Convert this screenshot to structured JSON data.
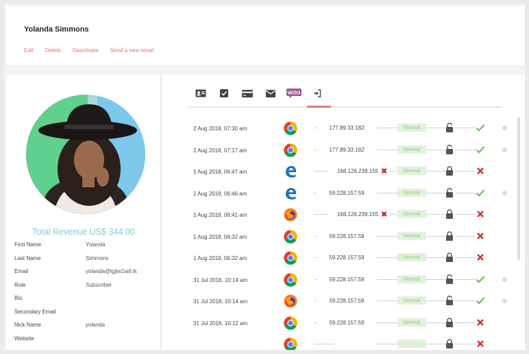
{
  "header": {
    "name": "Yolanda Simmons",
    "actions": {
      "edit": "Edit",
      "delete": "Delete",
      "deactivate": "Deactivate",
      "send_email": "Send a new email"
    }
  },
  "profile": {
    "revenue": "Total Revenue US$ 344.00",
    "fields": {
      "first_name": {
        "label": "First Name",
        "value": "Yolanda"
      },
      "last_name": {
        "label": "Last Name",
        "value": "Simmons"
      },
      "email": {
        "label": "Email",
        "value": "yolanda@lgjlw1iaif.tk"
      },
      "role": {
        "label": "Role",
        "value": "Subscriber"
      },
      "bio": {
        "label": "Bio",
        "value": ""
      },
      "secondary_email": {
        "label": "Secondary Email",
        "value": ""
      },
      "nick_name": {
        "label": "Nick Name",
        "value": "yolanda"
      },
      "website": {
        "label": "Website",
        "value": ""
      }
    }
  },
  "tabs": [
    {
      "icon": "contact-card-icon"
    },
    {
      "icon": "checkbox-icon"
    },
    {
      "icon": "credit-card-icon"
    },
    {
      "icon": "envelope-icon"
    },
    {
      "icon": "woo-icon",
      "label": "WOO"
    },
    {
      "icon": "sign-in-icon",
      "active": true
    }
  ],
  "colors": {
    "accent": "#e07777",
    "revenue": "#86c8cc",
    "status_bg": "#e2f1dc",
    "status_text": "#8fc58a",
    "success": "#6cbf5b",
    "error": "#d0312d"
  },
  "logins": [
    {
      "date": "2 Aug 2018, 07:30 am",
      "browser": "chrome",
      "ip": "177.89.33.182",
      "ip_flag": false,
      "status": "Normal",
      "lock": "open",
      "result": "success"
    },
    {
      "date": "2 Aug 2018, 07:17 am",
      "browser": "chrome",
      "ip": "177.89.33.182",
      "ip_flag": false,
      "status": "Normal",
      "lock": "open",
      "result": "success"
    },
    {
      "date": "1 Aug 2018, 06:47 am",
      "browser": "edge",
      "ip": "168.126.239.155",
      "ip_flag": true,
      "status": "Normal",
      "lock": "closed",
      "result": "fail"
    },
    {
      "date": "1 Aug 2018, 06:46 am",
      "browser": "edge",
      "ip": "59.228.157.59",
      "ip_flag": false,
      "status": "Normal",
      "lock": "open",
      "result": "success"
    },
    {
      "date": "1 Aug 2018, 06:41 am",
      "browser": "firefox",
      "ip": "168.126.239.155",
      "ip_flag": true,
      "status": "Normal",
      "lock": "closed",
      "result": "fail"
    },
    {
      "date": "1 Aug 2018, 06:32 am",
      "browser": "chrome",
      "ip": "59.228.157.59",
      "ip_flag": false,
      "status": "Normal",
      "lock": "closed",
      "result": "fail"
    },
    {
      "date": "1 Aug 2018, 06:32 am",
      "browser": "chrome",
      "ip": "59.228.157.59",
      "ip_flag": false,
      "status": "Normal",
      "lock": "closed",
      "result": "fail"
    },
    {
      "date": "31 Jul 2018, 10:14 am",
      "browser": "chrome",
      "ip": "59.228.157.59",
      "ip_flag": false,
      "status": "Normal",
      "lock": "open",
      "result": "success"
    },
    {
      "date": "31 Jul 2018, 10:14 am",
      "browser": "firefox",
      "ip": "59.228.157.59",
      "ip_flag": false,
      "status": "Normal",
      "lock": "open",
      "result": "success"
    },
    {
      "date": "31 Jul 2018, 10:12 am",
      "browser": "chrome",
      "ip": "59.228.157.59",
      "ip_flag": false,
      "status": "Normal",
      "lock": "closed",
      "result": "fail"
    },
    {
      "date": "",
      "browser": "chrome",
      "ip": "",
      "ip_flag": false,
      "status": "",
      "lock": "closed",
      "result": "fail"
    }
  ]
}
